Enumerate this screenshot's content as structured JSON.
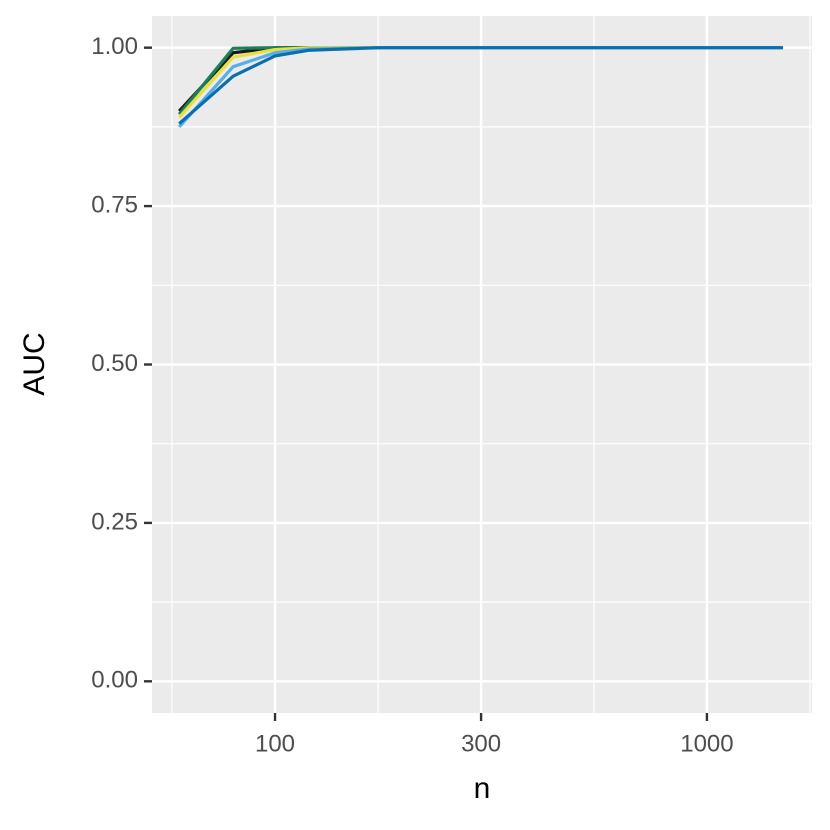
{
  "chart_data": {
    "type": "line",
    "x_label": "n",
    "y_label": "AUC",
    "xlog": true,
    "grid": true,
    "x": [
      60,
      80,
      100,
      120,
      175,
      1500
    ],
    "series": [
      {
        "color": "#1a1a1a",
        "values": [
          0.9,
          0.992,
          1.0,
          1.0,
          1.0,
          1.0
        ]
      },
      {
        "color": "#1b7f5a",
        "values": [
          0.895,
          0.999,
          1.0,
          1.0,
          1.0,
          1.0
        ]
      },
      {
        "color": "#e8e03c",
        "values": [
          0.89,
          0.985,
          0.997,
          1.0,
          1.0,
          1.0
        ]
      },
      {
        "color": "#5aaee6",
        "values": [
          0.875,
          0.97,
          0.992,
          0.998,
          1.0,
          1.0
        ]
      },
      {
        "color": "#0a6eb0",
        "values": [
          0.88,
          0.955,
          0.987,
          0.996,
          1.0,
          1.0
        ]
      }
    ],
    "xlim": [
      51.9,
      1751
    ],
    "ylim": [
      -0.05,
      1.05
    ],
    "xticks": [
      100,
      300,
      1000
    ],
    "x_minor_ticks": [
      57.7,
      173.2,
      547.7,
      1732
    ],
    "yticks": [
      {
        "value": 0,
        "label": "0.00"
      },
      {
        "value": 0.25,
        "label": "0.25"
      },
      {
        "value": 0.5,
        "label": "0.50"
      },
      {
        "value": 0.75,
        "label": "0.75"
      },
      {
        "value": 1,
        "label": "1.00"
      }
    ],
    "y_minor_ticks": [
      0.125,
      0.375,
      0.625,
      0.875
    ]
  }
}
